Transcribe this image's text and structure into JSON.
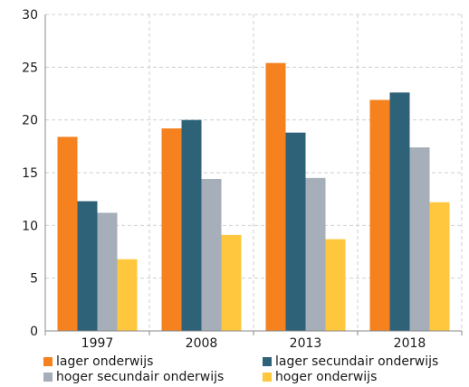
{
  "chart_data": {
    "type": "bar",
    "categories": [
      "1997",
      "2008",
      "2013",
      "2018"
    ],
    "series": [
      {
        "name": "lager onderwijs",
        "color": "#F5821F",
        "values": [
          18.4,
          19.2,
          25.4,
          21.9
        ]
      },
      {
        "name": "lager secundair onderwijs",
        "color": "#2E6278",
        "values": [
          12.3,
          20.0,
          18.8,
          22.6
        ]
      },
      {
        "name": "hoger secundair onderwijs",
        "color": "#A5AEB9",
        "values": [
          11.2,
          14.4,
          14.5,
          17.4
        ]
      },
      {
        "name": "hoger onderwijs",
        "color": "#FFC73D",
        "values": [
          6.8,
          9.1,
          8.7,
          12.2
        ]
      }
    ],
    "ylim": [
      0,
      30
    ],
    "yticks": [
      "0",
      "5",
      "10",
      "15",
      "20",
      "25",
      "30"
    ],
    "grid": true,
    "legend_position": "bottom",
    "title": "",
    "xlabel": "",
    "ylabel": ""
  }
}
